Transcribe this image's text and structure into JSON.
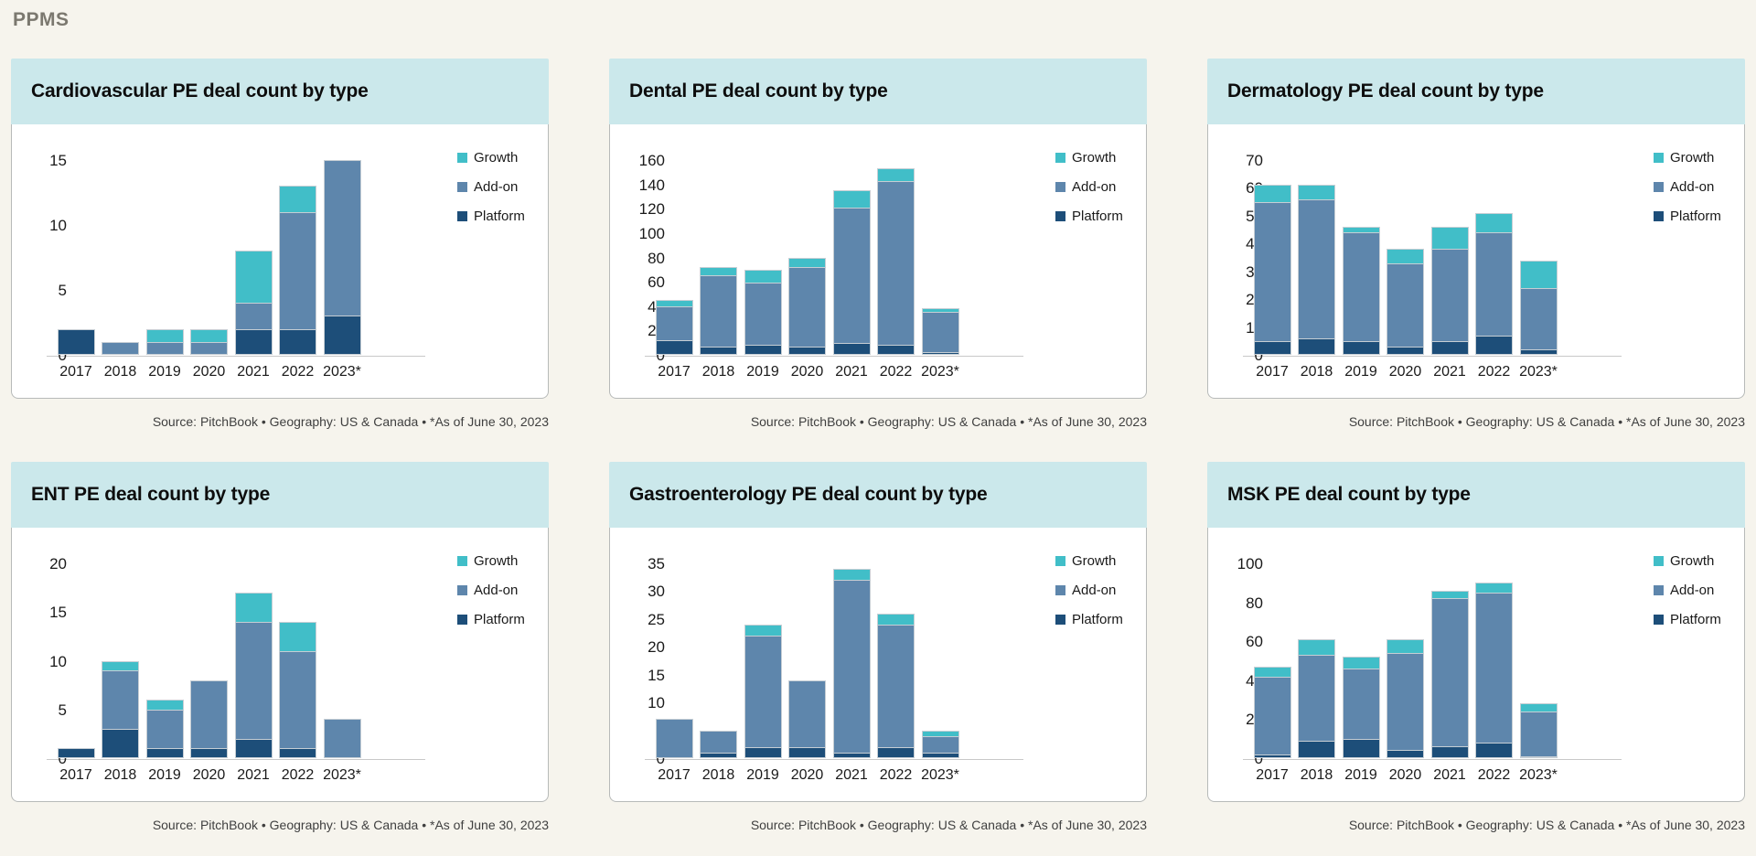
{
  "page": {
    "title": "PPMS"
  },
  "chart_data": [
    {
      "type": "bar",
      "stacked": true,
      "title": "Cardiovascular PE deal count by type",
      "categories": [
        "2017",
        "2018",
        "2019",
        "2020",
        "2021",
        "2022",
        "2023*"
      ],
      "series": [
        {
          "name": "Platform",
          "color": "#1D4E79",
          "values": [
            2,
            0,
            0,
            0,
            2,
            2,
            3
          ]
        },
        {
          "name": "Add-on",
          "color": "#5E86AC",
          "values": [
            0,
            1,
            1,
            1,
            2,
            9,
            12
          ]
        },
        {
          "name": "Growth",
          "color": "#41BEC8",
          "values": [
            0,
            0,
            1,
            1,
            4,
            2,
            0
          ]
        }
      ],
      "ylim": [
        0,
        15
      ],
      "yticks": [
        0,
        5,
        10,
        15
      ],
      "grid": false,
      "legend_position": "top-right",
      "legend_order": [
        "Growth",
        "Add-on",
        "Platform"
      ],
      "source": "Source: PitchBook • Geography: US & Canada • *As of June 30, 2023"
    },
    {
      "type": "bar",
      "stacked": true,
      "title": "Dental PE deal count by type",
      "categories": [
        "2017",
        "2018",
        "2019",
        "2020",
        "2021",
        "2022",
        "2023*"
      ],
      "series": [
        {
          "name": "Platform",
          "color": "#1D4E79",
          "values": [
            12,
            7,
            8,
            7,
            10,
            8,
            2
          ]
        },
        {
          "name": "Add-on",
          "color": "#5E86AC",
          "values": [
            28,
            58,
            51,
            65,
            111,
            135,
            33
          ]
        },
        {
          "name": "Growth",
          "color": "#41BEC8",
          "values": [
            5,
            7,
            11,
            8,
            14,
            10,
            3
          ]
        }
      ],
      "ylim": [
        0,
        160
      ],
      "yticks": [
        0,
        20,
        40,
        60,
        80,
        100,
        120,
        140,
        160
      ],
      "grid": false,
      "legend_position": "top-right",
      "legend_order": [
        "Growth",
        "Add-on",
        "Platform"
      ],
      "source": "Source: PitchBook • Geography: US & Canada • *As of June 30, 2023"
    },
    {
      "type": "bar",
      "stacked": true,
      "title": "Dermatology PE deal count by type",
      "categories": [
        "2017",
        "2018",
        "2019",
        "2020",
        "2021",
        "2022",
        "2023*"
      ],
      "series": [
        {
          "name": "Platform",
          "color": "#1D4E79",
          "values": [
            5,
            6,
            5,
            3,
            5,
            7,
            2
          ]
        },
        {
          "name": "Add-on",
          "color": "#5E86AC",
          "values": [
            50,
            50,
            39,
            30,
            33,
            37,
            22
          ]
        },
        {
          "name": "Growth",
          "color": "#41BEC8",
          "values": [
            6,
            5,
            2,
            5,
            8,
            7,
            10
          ]
        }
      ],
      "ylim": [
        0,
        70
      ],
      "yticks": [
        0,
        10,
        20,
        30,
        40,
        50,
        60,
        70
      ],
      "grid": false,
      "legend_position": "top-right",
      "legend_order": [
        "Growth",
        "Add-on",
        "Platform"
      ],
      "source": "Source: PitchBook • Geography: US & Canada • *As of June 30, 2023"
    },
    {
      "type": "bar",
      "stacked": true,
      "title": "ENT PE deal count by type",
      "categories": [
        "2017",
        "2018",
        "2019",
        "2020",
        "2021",
        "2022",
        "2023*"
      ],
      "series": [
        {
          "name": "Platform",
          "color": "#1D4E79",
          "values": [
            1,
            3,
            1,
            1,
            2,
            1,
            0
          ]
        },
        {
          "name": "Add-on",
          "color": "#5E86AC",
          "values": [
            0,
            6,
            4,
            7,
            12,
            10,
            4
          ]
        },
        {
          "name": "Growth",
          "color": "#41BEC8",
          "values": [
            0,
            1,
            1,
            0,
            3,
            3,
            0
          ]
        }
      ],
      "ylim": [
        0,
        20
      ],
      "yticks": [
        0,
        5,
        10,
        15,
        20
      ],
      "grid": false,
      "legend_position": "top-right",
      "legend_order": [
        "Growth",
        "Add-on",
        "Platform"
      ],
      "source": "Source: PitchBook • Geography: US & Canada • *As of June 30, 2023"
    },
    {
      "type": "bar",
      "stacked": true,
      "title": "Gastroenterology PE deal count by type",
      "categories": [
        "2017",
        "2018",
        "2019",
        "2020",
        "2021",
        "2022",
        "2023*"
      ],
      "series": [
        {
          "name": "Platform",
          "color": "#1D4E79",
          "values": [
            0,
            1,
            2,
            2,
            1,
            2,
            1
          ]
        },
        {
          "name": "Add-on",
          "color": "#5E86AC",
          "values": [
            7,
            4,
            20,
            12,
            31,
            22,
            3
          ]
        },
        {
          "name": "Growth",
          "color": "#41BEC8",
          "values": [
            0,
            0,
            2,
            0,
            2,
            2,
            1
          ]
        }
      ],
      "ylim": [
        0,
        35
      ],
      "yticks": [
        0,
        5,
        10,
        15,
        20,
        25,
        30,
        35
      ],
      "grid": false,
      "legend_position": "top-right",
      "legend_order": [
        "Growth",
        "Add-on",
        "Platform"
      ],
      "source": "Source: PitchBook • Geography: US & Canada • *As of June 30, 2023"
    },
    {
      "type": "bar",
      "stacked": true,
      "title": "MSK PE deal count by type",
      "categories": [
        "2017",
        "2018",
        "2019",
        "2020",
        "2021",
        "2022",
        "2023*"
      ],
      "series": [
        {
          "name": "Platform",
          "color": "#1D4E79",
          "values": [
            2,
            9,
            10,
            4,
            6,
            8,
            1
          ]
        },
        {
          "name": "Add-on",
          "color": "#5E86AC",
          "values": [
            40,
            44,
            36,
            50,
            76,
            77,
            23
          ]
        },
        {
          "name": "Growth",
          "color": "#41BEC8",
          "values": [
            5,
            8,
            6,
            7,
            4,
            5,
            4
          ]
        }
      ],
      "ylim": [
        0,
        100
      ],
      "yticks": [
        0,
        20,
        40,
        60,
        80,
        100
      ],
      "grid": false,
      "legend_position": "top-right",
      "legend_order": [
        "Growth",
        "Add-on",
        "Platform"
      ],
      "source": "Source: PitchBook • Geography: US & Canada • *As of June 30, 2023"
    }
  ]
}
